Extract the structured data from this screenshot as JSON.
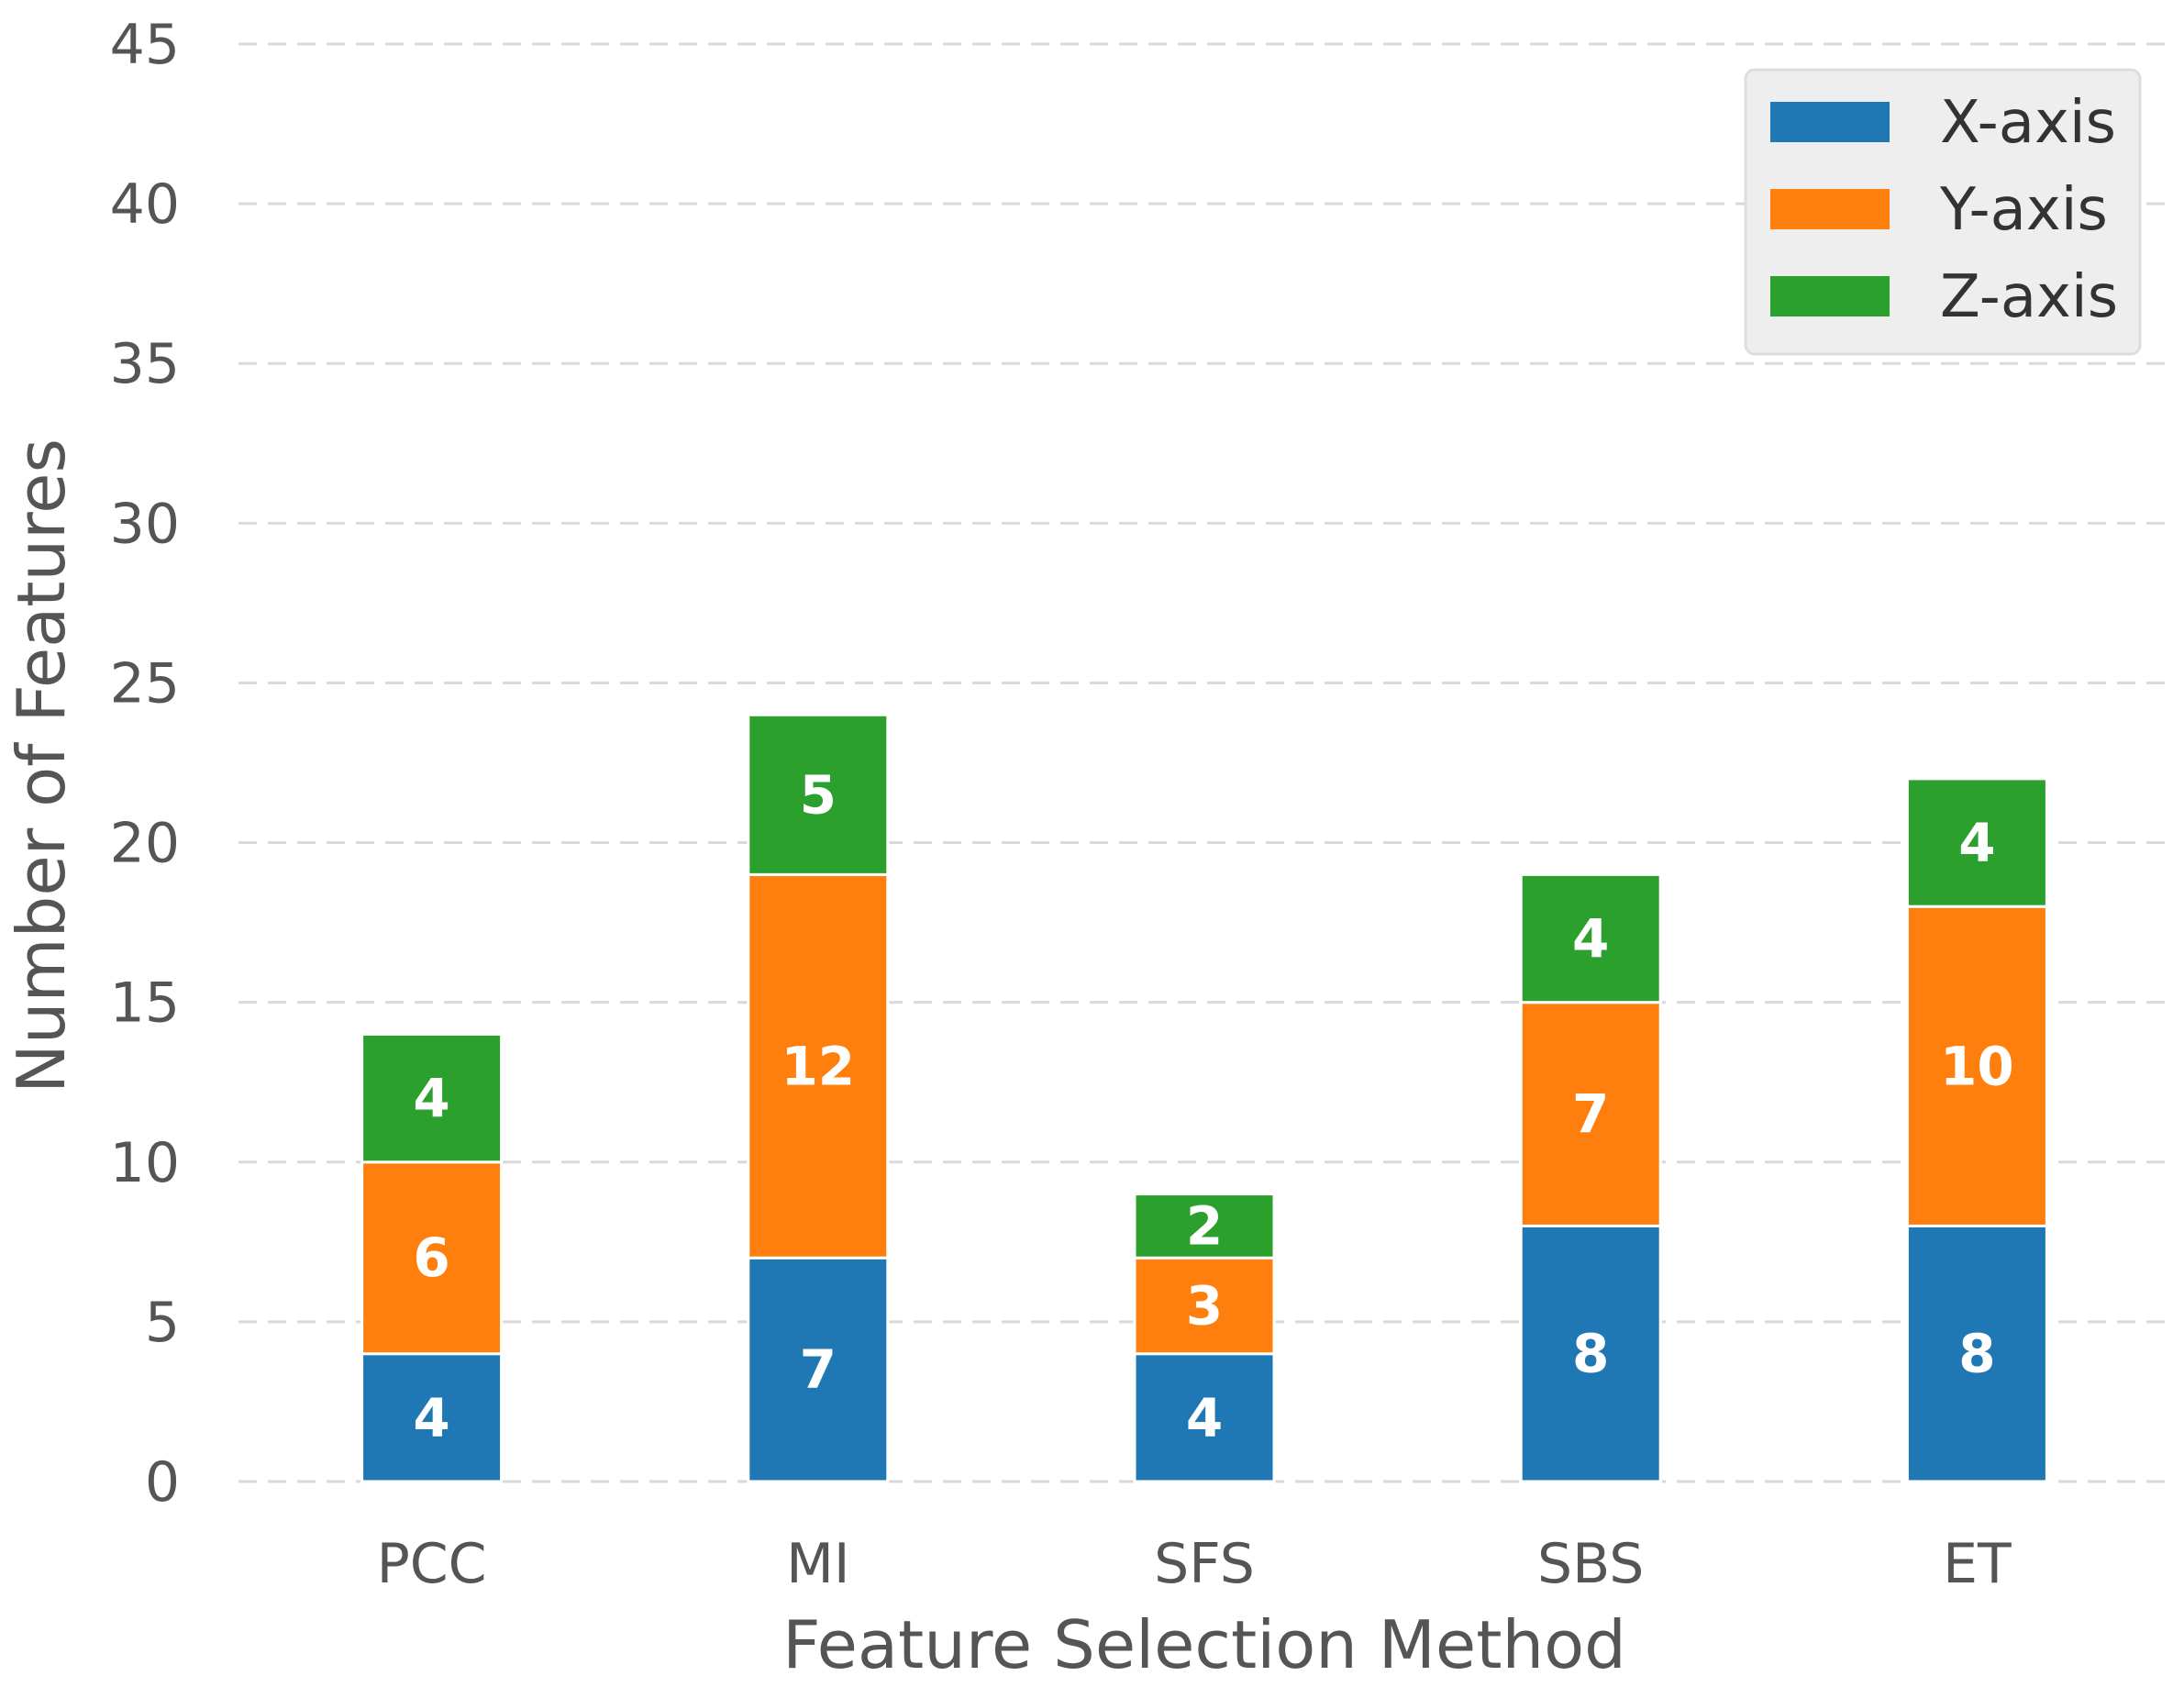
{
  "chart_data": {
    "type": "bar",
    "stacked": true,
    "categories": [
      "PCC",
      "MI",
      "SFS",
      "SBS",
      "ET"
    ],
    "series": [
      {
        "name": "X-axis",
        "values": [
          4,
          7,
          4,
          8,
          8
        ],
        "color": "#1f77b4"
      },
      {
        "name": "Y-axis",
        "values": [
          6,
          12,
          3,
          7,
          10
        ],
        "color": "#ff7f0e"
      },
      {
        "name": "Z-axis",
        "values": [
          4,
          5,
          2,
          4,
          4
        ],
        "color": "#2ca02c"
      }
    ],
    "xlabel": "Feature Selection Method",
    "ylabel": "Number of Features",
    "ylim": [
      0,
      45
    ],
    "yticks": [
      "0",
      "5",
      "10",
      "15",
      "20",
      "25",
      "30",
      "35",
      "40",
      "45"
    ],
    "grid": "horizontal dashed",
    "legend_position": "top-right",
    "data_labels": true
  }
}
